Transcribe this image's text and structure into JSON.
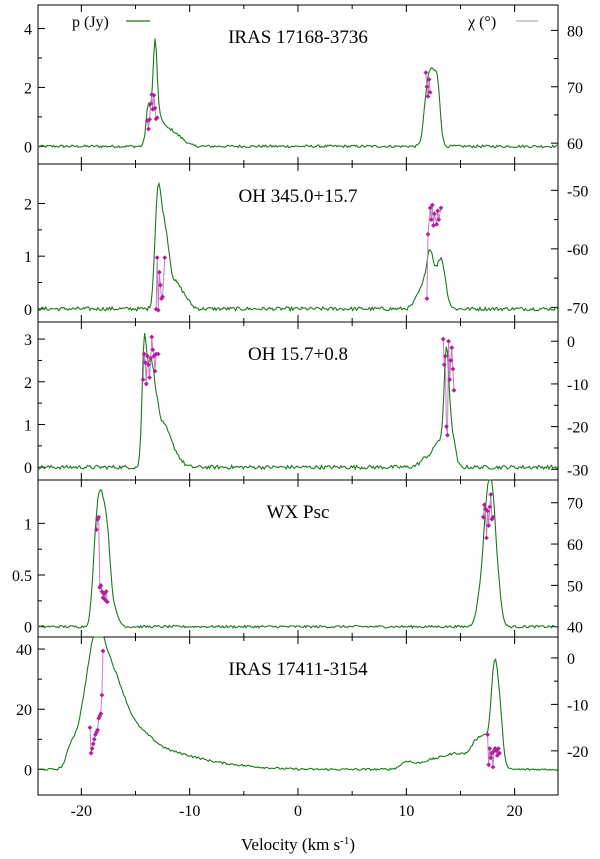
{
  "chart_data": {
    "type": "line",
    "xlabel": "Velocity (km s",
    "xlabel_sup": "-1",
    "xlabel_close": ")",
    "xlim": [
      -24,
      24
    ],
    "xticks": [
      -20,
      -10,
      0,
      10,
      20
    ],
    "xtick_labels": [
      "-20",
      "-10",
      "0",
      "10",
      "20"
    ],
    "legend": [
      {
        "name": "p (Jy)",
        "position": "top-left",
        "color": "#1a7a1a"
      },
      {
        "name": "χ (°)",
        "position": "top-right",
        "color": "#b0b0b0"
      }
    ],
    "panels": [
      {
        "title": "IRAS 17168-3736",
        "ylim": [
          -0.6,
          4.8
        ],
        "yticks": [
          0,
          2,
          4
        ],
        "ytick_labels": [
          "0",
          "2",
          "4"
        ],
        "y2lim": [
          56.3,
          84.5
        ],
        "y2ticks": [
          60,
          70,
          80
        ],
        "y2tick_labels": [
          "60",
          "70",
          "80"
        ],
        "flux_peaks": [
          {
            "v": -13.8,
            "a": 1.4,
            "w": 0.22
          },
          {
            "v": -13.2,
            "a": 3.4,
            "w": 0.2
          },
          {
            "v": -12.7,
            "a": 0.7,
            "w": 0.3
          },
          {
            "v": -12.0,
            "a": 0.5,
            "w": 0.5
          },
          {
            "v": -11.0,
            "a": 0.3,
            "w": 0.6
          },
          {
            "v": 11.9,
            "a": 1.6,
            "w": 0.3
          },
          {
            "v": 12.4,
            "a": 2.0,
            "w": 0.3
          },
          {
            "v": 12.9,
            "a": 1.8,
            "w": 0.25
          }
        ],
        "noise": 0.045,
        "pa": {
          "series": [
            {
              "v": [
                -13.9,
                -13.8,
                -13.7,
                -13.6,
                -13.5,
                -13.4,
                -13.3,
                -13.2,
                -13.1,
                -13.0
              ],
              "chi": [
                64.0,
                62.5,
                64.2,
                67.0,
                68.6,
                66.0,
                68.5,
                66.2,
                64.3,
                64.5
              ]
            },
            {
              "v": [
                11.8,
                11.9,
                12.0,
                12.1,
                12.2
              ],
              "chi": [
                72.5,
                70.0,
                68.3,
                71.3,
                69.0
              ]
            }
          ]
        }
      },
      {
        "title": "OH 345.0+15.7",
        "ylim": [
          -0.25,
          2.75
        ],
        "yticks": [
          0,
          1,
          2
        ],
        "ytick_labels": [
          "0",
          "1",
          "2"
        ],
        "y2lim": [
          -72.5,
          -45.5
        ],
        "y2ticks": [
          -70,
          -60,
          -50
        ],
        "y2tick_labels": [
          "-70",
          "-60",
          "-50"
        ],
        "flux_peaks": [
          {
            "v": -13.0,
            "a": 1.65,
            "w": 0.25
          },
          {
            "v": -12.6,
            "a": 1.35,
            "w": 0.3
          },
          {
            "v": -12.1,
            "a": 0.9,
            "w": 0.3
          },
          {
            "v": -11.4,
            "a": 0.45,
            "w": 0.5
          },
          {
            "v": -10.5,
            "a": 0.2,
            "w": 0.5
          },
          {
            "v": 11.4,
            "a": 0.35,
            "w": 0.5
          },
          {
            "v": 12.2,
            "a": 1.0,
            "w": 0.35
          },
          {
            "v": 13.2,
            "a": 0.95,
            "w": 0.4
          }
        ],
        "noise": 0.035,
        "pa": {
          "series": [
            {
              "v": [
                -13.1,
                -13.0,
                -12.9,
                -12.8,
                -12.7,
                -12.6,
                -12.5,
                -12.3
              ],
              "chi": [
                -70.3,
                -61.5,
                -70.5,
                -64.0,
                -66.2,
                -68.5,
                -68.2,
                -61.5
              ]
            },
            {
              "v": [
                11.9,
                12.0,
                12.2,
                12.3,
                12.4,
                12.5,
                12.6,
                12.8,
                12.9,
                13.0,
                13.2
              ],
              "chi": [
                -68.5,
                -57.5,
                -53.0,
                -55.0,
                -52.5,
                -56.0,
                -54.0,
                -55.8,
                -53.5,
                -55.0,
                -53.0
              ]
            }
          ]
        }
      },
      {
        "title": "OH 15.7+0.8",
        "ylim": [
          -0.3,
          3.4
        ],
        "yticks": [
          0,
          1,
          2,
          3
        ],
        "ytick_labels": [
          "0",
          "1",
          "2",
          "3"
        ],
        "y2lim": [
          -32.5,
          4.5
        ],
        "y2ticks": [
          -30,
          -20,
          -10,
          0
        ],
        "y2tick_labels": [
          "-30",
          "-20",
          "-10",
          "0"
        ],
        "flux_peaks": [
          {
            "v": -14.2,
            "a": 2.6,
            "w": 0.2
          },
          {
            "v": -13.7,
            "a": 1.9,
            "w": 0.3
          },
          {
            "v": -13.2,
            "a": 1.3,
            "w": 0.35
          },
          {
            "v": -12.4,
            "a": 0.8,
            "w": 0.5
          },
          {
            "v": -11.5,
            "a": 0.35,
            "w": 0.6
          },
          {
            "v": 12.0,
            "a": 0.25,
            "w": 0.6
          },
          {
            "v": 13.0,
            "a": 0.55,
            "w": 0.4
          },
          {
            "v": 13.7,
            "a": 2.55,
            "w": 0.22
          },
          {
            "v": 14.2,
            "a": 0.8,
            "w": 0.3
          }
        ],
        "noise": 0.045,
        "pa": {
          "series": [
            {
              "v": [
                -14.3,
                -14.2,
                -14.1,
                -14.0,
                -13.9,
                -13.8,
                -13.7,
                -13.6,
                -13.5,
                -13.4,
                -13.3,
                -13.2,
                -13.1,
                -12.9
              ],
              "chi": [
                -9.0,
                -3.0,
                -5.0,
                -10.0,
                -3.5,
                -5.5,
                -8.5,
                -4.0,
                1.0,
                -2.0,
                -3.5,
                -7.0,
                -3.0,
                -3.0
              ]
            },
            {
              "v": [
                13.4,
                13.5,
                13.6,
                13.7,
                13.8,
                13.9,
                14.0,
                14.1,
                14.2,
                14.3,
                14.4
              ],
              "chi": [
                0.5,
                -5.5,
                -3.5,
                -20.0,
                -22.0,
                0.0,
                -9.0,
                -4.5,
                -1.5,
                -6.5,
                -11.5
              ]
            }
          ]
        }
      },
      {
        "title": "WX Psc",
        "ylim": [
          -0.1,
          1.42
        ],
        "yticks": [
          0,
          0.5,
          1
        ],
        "ytick_labels": [
          "0",
          "0.5",
          "1"
        ],
        "y2lim": [
          37.5,
          75.5
        ],
        "y2ticks": [
          40,
          50,
          60,
          70
        ],
        "y2tick_labels": [
          "40",
          "50",
          "60",
          "70"
        ],
        "flux_peaks": [
          {
            "v": -18.7,
            "a": 0.55,
            "w": 0.3
          },
          {
            "v": -18.2,
            "a": 1.1,
            "w": 0.35
          },
          {
            "v": -17.6,
            "a": 0.7,
            "w": 0.3
          },
          {
            "v": -17.0,
            "a": 0.15,
            "w": 0.4
          },
          {
            "v": 16.9,
            "a": 0.3,
            "w": 0.4
          },
          {
            "v": 17.5,
            "a": 1.05,
            "w": 0.35
          },
          {
            "v": 18.0,
            "a": 0.85,
            "w": 0.3
          },
          {
            "v": 18.5,
            "a": 0.3,
            "w": 0.3
          }
        ],
        "noise": 0.012,
        "pa": {
          "series": [
            {
              "v": [
                -18.6,
                -18.5,
                -18.4,
                -18.3,
                -18.2,
                -18.1,
                -18.0,
                -17.9,
                -17.8,
                -17.7,
                -17.6
              ],
              "chi": [
                63.5,
                66.0,
                66.5,
                49.5,
                50.0,
                48.5,
                47.0,
                48.0,
                46.5,
                48.5,
                46.0
              ]
            },
            {
              "v": [
                17.1,
                17.2,
                17.3,
                17.4,
                17.5,
                17.6,
                17.7,
                17.8,
                17.9,
                18.0
              ],
              "chi": [
                66.5,
                69.5,
                68.5,
                61.5,
                68.0,
                64.5,
                69.0,
                72.0,
                66.0,
                66.5
              ]
            }
          ]
        }
      },
      {
        "title": "IRAS 17411-3154",
        "ylim": [
          -8.5,
          44
        ],
        "yticks": [
          0,
          20,
          40
        ],
        "ytick_labels": [
          "0",
          "20",
          "40"
        ],
        "y2lim": [
          -29.5,
          4.5
        ],
        "y2ticks": [
          -20,
          -10,
          0
        ],
        "y2tick_labels": [
          "-20",
          "-10",
          "0"
        ],
        "flux_peaks": [
          {
            "v": -21.0,
            "a": 5.0,
            "w": 0.4
          },
          {
            "v": -19.6,
            "a": 18.0,
            "w": 0.8
          },
          {
            "v": -18.6,
            "a": 28.0,
            "w": 0.7
          },
          {
            "v": -17.6,
            "a": 20.0,
            "w": 0.8
          },
          {
            "v": -16.5,
            "a": 14.0,
            "w": 0.9
          },
          {
            "v": -15.0,
            "a": 10.0,
            "w": 1.5
          },
          {
            "v": -12.0,
            "a": 5.0,
            "w": 2.5
          },
          {
            "v": -7.0,
            "a": 1.5,
            "w": 3.0
          },
          {
            "v": 10.0,
            "a": 2.0,
            "w": 0.5
          },
          {
            "v": 12.5,
            "a": 3.0,
            "w": 1.5
          },
          {
            "v": 15.0,
            "a": 4.5,
            "w": 1.2
          },
          {
            "v": 16.5,
            "a": 7.0,
            "w": 0.5
          },
          {
            "v": 17.3,
            "a": 8.0,
            "w": 0.4
          },
          {
            "v": 18.1,
            "a": 30.0,
            "w": 0.3
          },
          {
            "v": 18.6,
            "a": 18.0,
            "w": 0.3
          }
        ],
        "noise": 0.35,
        "pa": {
          "series": [
            {
              "v": [
                -19.2,
                -19.1,
                -19.0,
                -18.9,
                -18.8,
                -18.7,
                -18.6,
                -18.5,
                -18.4,
                -18.3,
                -18.2,
                -18.1,
                -18.0
              ],
              "chi": [
                -15.0,
                -20.5,
                -19.5,
                -18.5,
                -17.5,
                -16.5,
                -16.0,
                -15.5,
                -13.0,
                -12.5,
                -12.0,
                -8.0,
                1.5
              ]
            },
            {
              "v": [
                17.5,
                17.6,
                17.7,
                17.8,
                17.9,
                18.0,
                18.1,
                18.2,
                18.3,
                18.4,
                18.5,
                18.6
              ],
              "chi": [
                -16.5,
                -23.0,
                -19.5,
                -21.5,
                -20.5,
                -23.5,
                -20.0,
                -19.5,
                -20.0,
                -21.0,
                -19.5,
                -20.5
              ]
            }
          ]
        }
      }
    ],
    "colors": {
      "flux": "#1a7a1a",
      "pa": "#b0209f",
      "pa_line": "#c77bc3"
    }
  }
}
